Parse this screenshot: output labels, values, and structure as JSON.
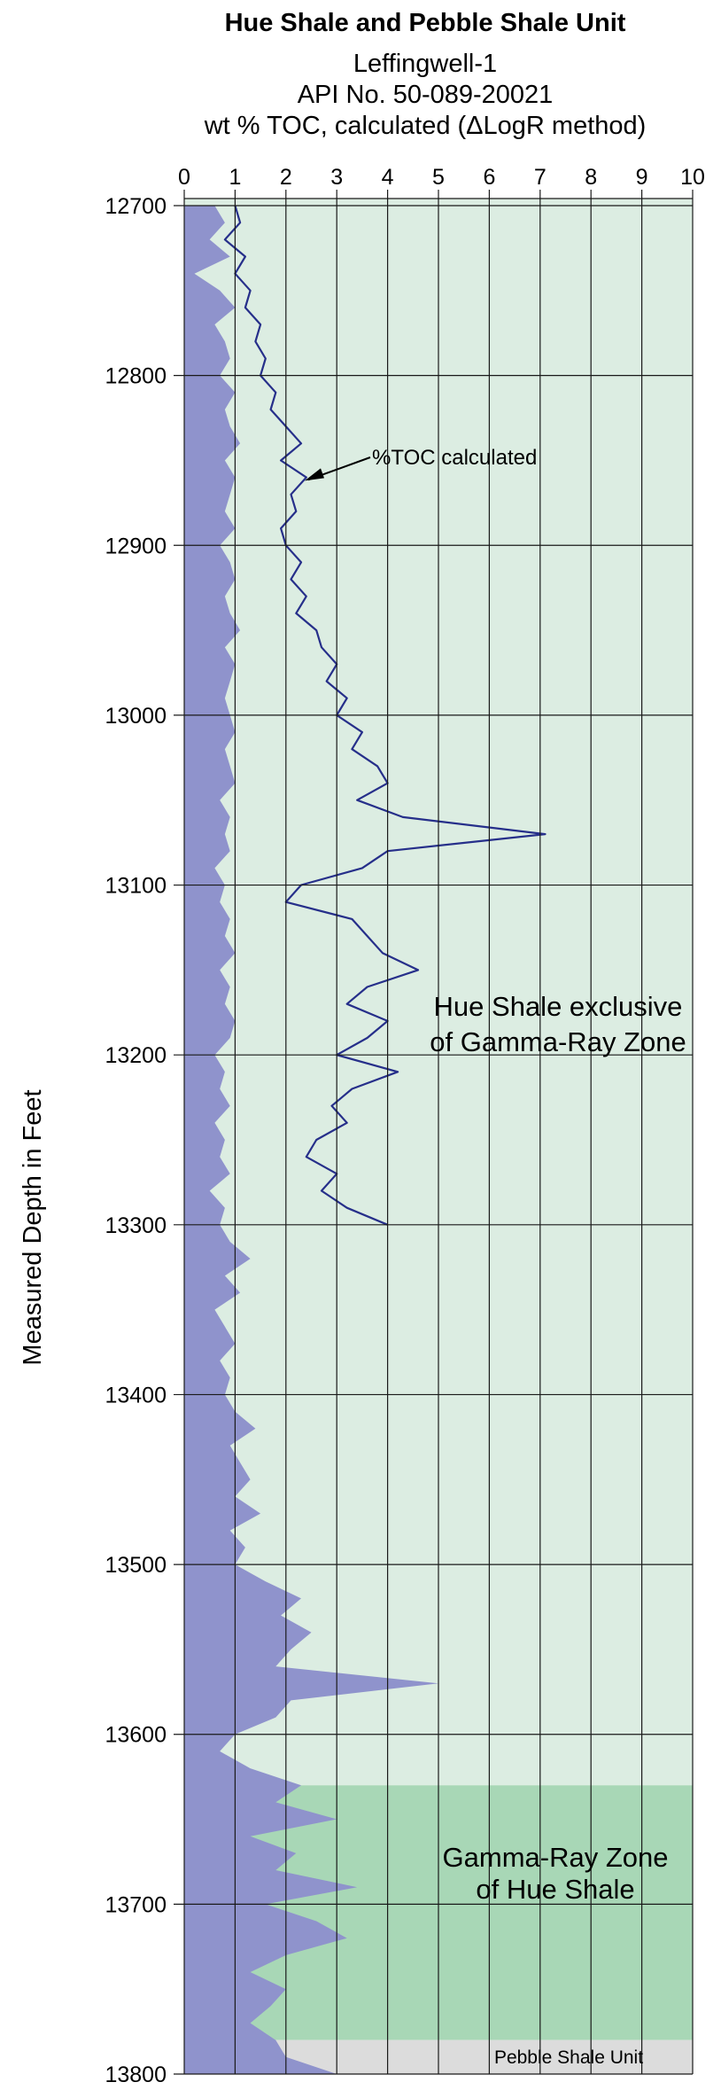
{
  "chart_data": {
    "type": "area",
    "title": "Hue Shale and Pebble Shale Unit",
    "subtitle_lines": [
      "Leffingwell-1",
      "API No. 50-089-20021",
      "wt % TOC, calculated (ΔLogR method)"
    ],
    "xlabel": "",
    "ylabel": "Measured Depth in Feet",
    "xlim": [
      0,
      10
    ],
    "ylim": [
      12700,
      13800
    ],
    "x_ticks": [
      "0",
      "1",
      "2",
      "3",
      "4",
      "5",
      "6",
      "7",
      "8",
      "9",
      "10"
    ],
    "y_ticks": [
      "12700",
      "12800",
      "12900",
      "13000",
      "13100",
      "13200",
      "13300",
      "13400",
      "13500",
      "13600",
      "13700",
      "13800"
    ],
    "grid": true,
    "intervals": [
      {
        "label": "Hue Shale exclusive of Gamma-Ray Zone",
        "top": 12695,
        "base": 13630,
        "color": "#dcede2"
      },
      {
        "label": "Gamma-Ray Zone of Hue Shale",
        "top": 13630,
        "base": 13780,
        "color": "#a8d7b6"
      },
      {
        "label": "Pebble Shale Unit",
        "top": 13780,
        "base": 13800,
        "color": "#dcdcdc"
      }
    ],
    "series": [
      {
        "style": "area",
        "color": "#8f93cc",
        "depth": [
          12700,
          12710,
          12720,
          12730,
          12740,
          12750,
          12760,
          12770,
          12780,
          12790,
          12800,
          12810,
          12820,
          12830,
          12840,
          12850,
          12860,
          12870,
          12880,
          12890,
          12900,
          12910,
          12920,
          12930,
          12940,
          12950,
          12960,
          12970,
          12980,
          12990,
          13000,
          13010,
          13020,
          13030,
          13040,
          13050,
          13060,
          13070,
          13080,
          13090,
          13100,
          13110,
          13120,
          13130,
          13140,
          13150,
          13160,
          13170,
          13180,
          13190,
          13200,
          13210,
          13220,
          13230,
          13240,
          13250,
          13260,
          13270,
          13280,
          13290,
          13300,
          13310,
          13320,
          13330,
          13340,
          13350,
          13360,
          13370,
          13380,
          13390,
          13400,
          13410,
          13420,
          13430,
          13440,
          13450,
          13460,
          13470,
          13480,
          13490,
          13500,
          13510,
          13520,
          13530,
          13540,
          13550,
          13560,
          13570,
          13580,
          13590,
          13600,
          13610,
          13620,
          13630,
          13640,
          13650,
          13660,
          13670,
          13680,
          13690,
          13700,
          13710,
          13720,
          13730,
          13740,
          13750,
          13760,
          13770,
          13780,
          13790,
          13800
        ],
        "values": [
          0.6,
          0.8,
          0.5,
          0.9,
          0.2,
          0.7,
          1.0,
          0.6,
          0.8,
          0.9,
          0.7,
          1.0,
          0.8,
          0.9,
          1.1,
          0.8,
          1.0,
          0.9,
          0.8,
          1.0,
          0.7,
          0.9,
          1.0,
          0.8,
          0.9,
          1.1,
          0.8,
          1.0,
          0.9,
          0.8,
          0.9,
          1.0,
          0.8,
          0.9,
          1.0,
          0.7,
          0.9,
          0.8,
          0.9,
          0.6,
          0.8,
          0.7,
          0.9,
          0.8,
          1.0,
          0.7,
          0.9,
          0.8,
          1.0,
          0.9,
          0.6,
          0.8,
          0.7,
          0.9,
          0.6,
          0.8,
          0.7,
          0.9,
          0.5,
          0.8,
          0.7,
          0.9,
          1.3,
          0.8,
          1.1,
          0.6,
          0.8,
          1.0,
          0.7,
          0.9,
          0.8,
          1.0,
          1.4,
          0.9,
          1.1,
          1.3,
          1.0,
          1.5,
          0.9,
          1.2,
          1.0,
          1.6,
          2.3,
          1.9,
          2.5,
          2.1,
          1.8,
          5.0,
          2.1,
          1.8,
          1.0,
          0.7,
          1.3,
          2.3,
          1.8,
          3.0,
          1.3,
          2.2,
          1.8,
          3.4,
          1.6,
          2.6,
          3.2,
          2.0,
          1.3,
          2.0,
          1.7,
          1.3,
          1.8,
          2.0,
          3.0
        ]
      },
      {
        "name": "%TOC calculated",
        "style": "line",
        "color": "#262f8a",
        "depth": [
          12700,
          12710,
          12720,
          12730,
          12740,
          12750,
          12760,
          12770,
          12780,
          12790,
          12800,
          12810,
          12820,
          12830,
          12840,
          12850,
          12860,
          12870,
          12880,
          12890,
          12900,
          12910,
          12920,
          12930,
          12940,
          12950,
          12960,
          12970,
          12980,
          12990,
          13000,
          13010,
          13020,
          13030,
          13040,
          13050,
          13060,
          13070,
          13080,
          13090,
          13100,
          13110,
          13120,
          13130,
          13140,
          13150,
          13160,
          13170,
          13180,
          13190,
          13200,
          13210,
          13220,
          13230,
          13240,
          13250,
          13260,
          13270,
          13280,
          13290,
          13300
        ],
        "values": [
          1.0,
          1.1,
          0.8,
          1.2,
          1.0,
          1.3,
          1.2,
          1.5,
          1.4,
          1.6,
          1.5,
          1.8,
          1.7,
          2.0,
          2.3,
          1.9,
          2.4,
          2.1,
          2.2,
          1.9,
          2.0,
          2.3,
          2.1,
          2.4,
          2.2,
          2.6,
          2.7,
          3.0,
          2.8,
          3.2,
          3.0,
          3.5,
          3.3,
          3.8,
          4.0,
          3.4,
          4.3,
          7.1,
          4.0,
          3.5,
          2.3,
          2.0,
          3.3,
          3.6,
          3.9,
          4.6,
          3.6,
          3.2,
          4.0,
          3.6,
          3.0,
          4.2,
          3.3,
          2.9,
          3.2,
          2.6,
          2.4,
          3.0,
          2.7,
          3.2,
          4.0
        ]
      }
    ],
    "annotations": [
      {
        "text": "%TOC calculated",
        "arrow_to": {
          "x": 2.3,
          "depth": 12863
        }
      },
      {
        "text_lines": [
          "Hue Shale exclusive",
          "of Gamma-Ray Zone"
        ]
      },
      {
        "text_lines": [
          "Gamma-Ray Zone",
          "of Hue Shale"
        ]
      },
      {
        "text": "Pebble Shale Unit"
      }
    ]
  }
}
